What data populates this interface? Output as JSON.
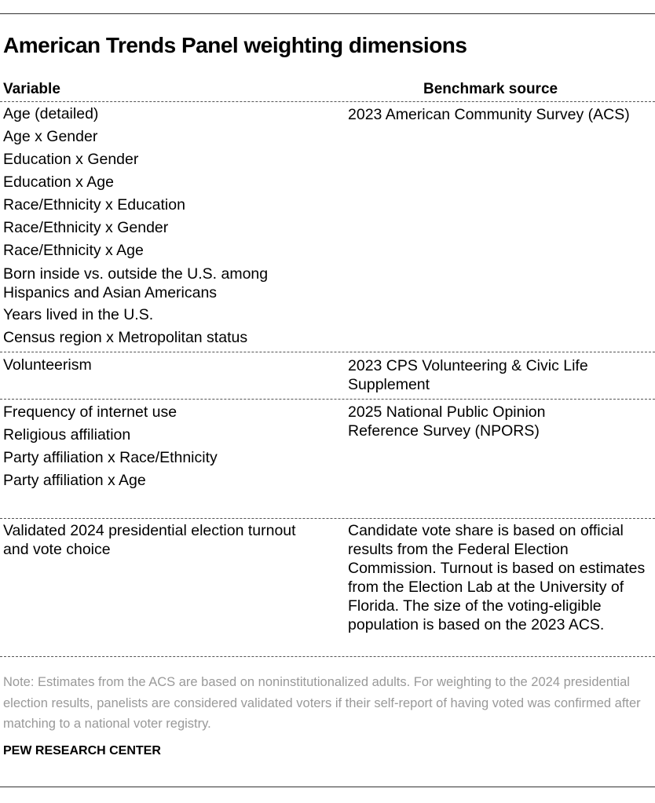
{
  "title": "American Trends Panel weighting dimensions",
  "headers": {
    "variable": "Variable",
    "benchmark": "Benchmark source"
  },
  "groups": [
    {
      "variables": [
        "Age (detailed)",
        "Age x Gender",
        "Education x Gender",
        "Education x Age",
        "Race/Ethnicity x Education",
        "Race/Ethnicity x Gender",
        "Race/Ethnicity x Age",
        "Born inside vs. outside the U.S. among Hispanics and Asian Americans",
        "Years lived in the U.S.",
        "Census region x Metropolitan status"
      ],
      "source": "2023 American Community Survey (ACS)"
    },
    {
      "variables": [
        "Volunteerism"
      ],
      "source": "2023 CPS Volunteering & Civic Life Supplement"
    },
    {
      "variables": [
        "Frequency of internet use",
        "Religious affiliation",
        "Party affiliation x Race/Ethnicity",
        "Party affiliation x Age"
      ],
      "source": "2025 National Public Opinion Reference Survey (NPORS)"
    },
    {
      "variables": [
        "Validated 2024 presidential election turnout and vote choice"
      ],
      "source": "Candidate vote share is based on official results from the Federal Election Commission. Turnout is based on estimates from the Election Lab at the University of Florida. The size of the voting-eligible population is based on the 2023 ACS."
    }
  ],
  "note": "Note: Estimates from the ACS are based on noninstitutionalized adults. For weighting to the 2024 presidential election results, panelists are considered validated voters if their self-report of having voted was confirmed after matching to a national voter registry.",
  "source_label": "PEW RESEARCH CENTER"
}
